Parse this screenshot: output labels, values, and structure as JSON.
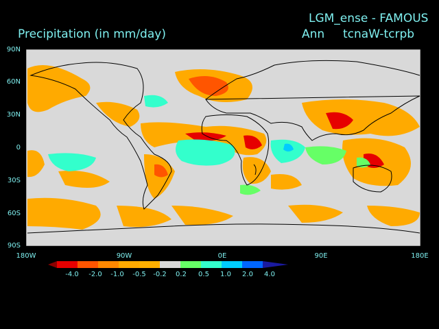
{
  "header": {
    "variable_title": "Precipitation (in mm/day)",
    "experiment": "LGM_ense - FAMOUS",
    "season": "Ann",
    "difference": "tcnaW-tcrpb"
  },
  "axes": {
    "lat_labels": [
      "90N",
      "60N",
      "30N",
      "0",
      "30S",
      "60S",
      "90S"
    ],
    "lon_labels": [
      "180W",
      "90W",
      "0E",
      "90E",
      "180E"
    ]
  },
  "colorbar": {
    "labels": [
      "-4.0",
      "-2.0",
      "-1.0",
      "-0.5",
      "-0.2",
      "0.2",
      "0.5",
      "1.0",
      "2.0",
      "4.0"
    ],
    "colors": [
      "#8b0000",
      "#e60000",
      "#ff5500",
      "#ff9900",
      "#ffb000",
      "#d9d9d9",
      "#66ff66",
      "#33ffcc",
      "#00ccff",
      "#0066ff",
      "#1a1aa0"
    ]
  },
  "map": {
    "background_color": "#d9d9d9",
    "coastline_color": "#000000"
  }
}
